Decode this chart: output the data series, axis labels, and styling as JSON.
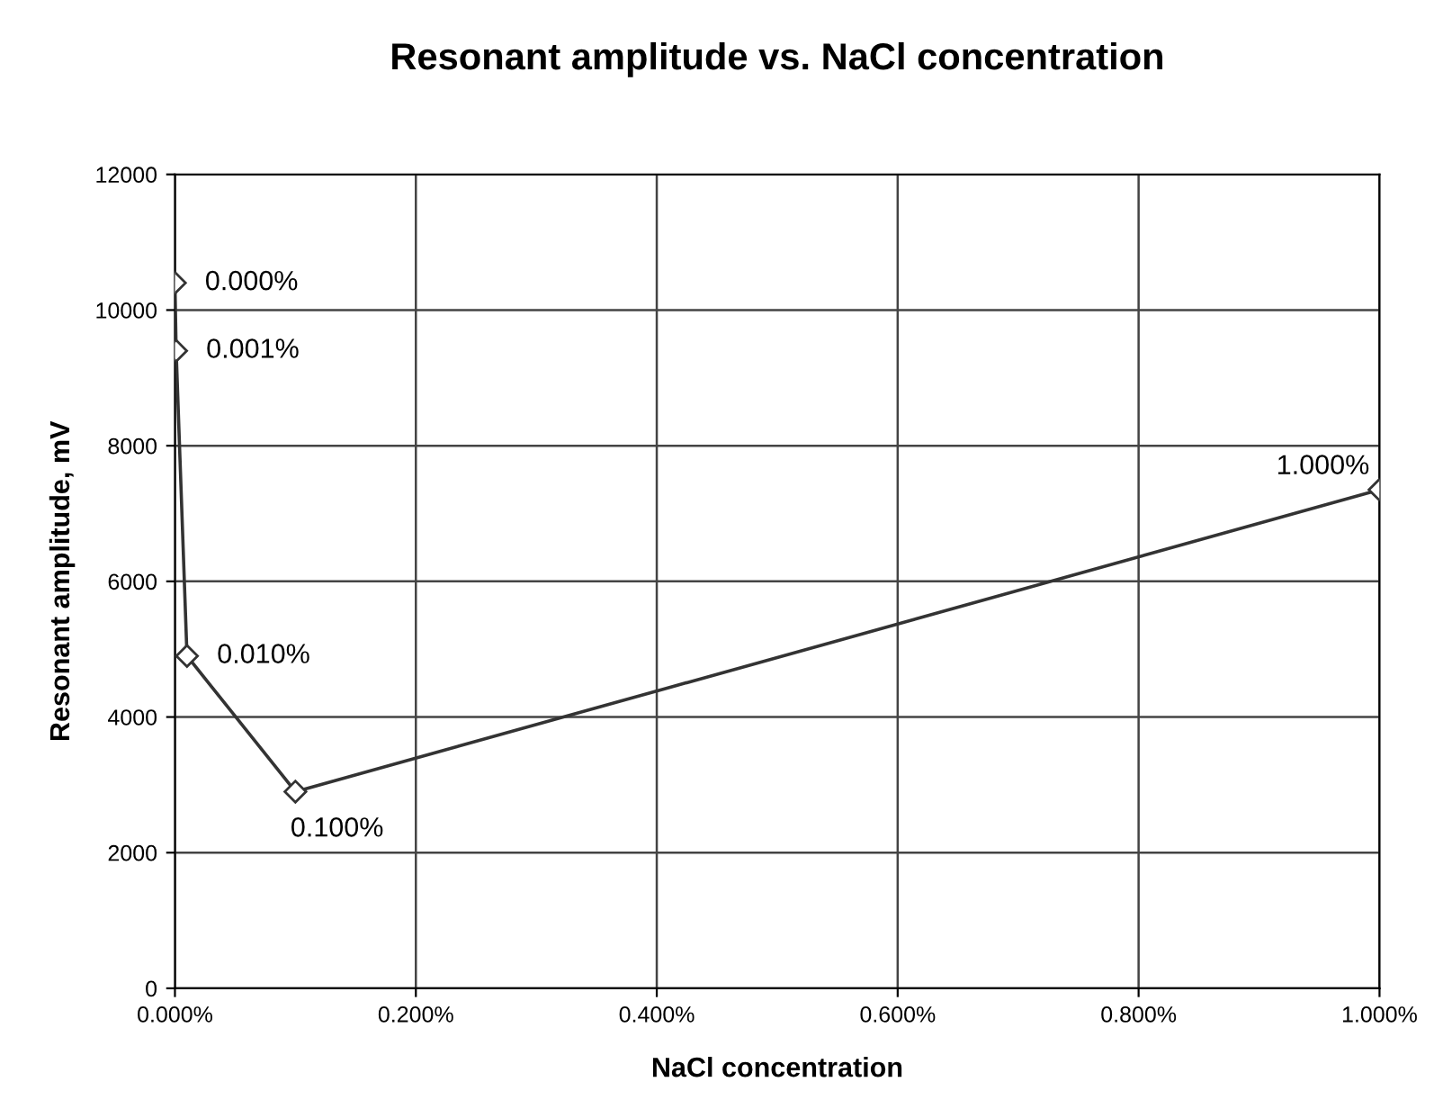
{
  "chart_data": {
    "type": "line",
    "title": "Resonant amplitude vs. NaCl concentration",
    "xlabel": "NaCl concentration",
    "ylabel": "Resonant amplitude, mV",
    "x": [
      0,
      0.001,
      0.01,
      0.1,
      1
    ],
    "series": [
      {
        "color": "#333333",
        "values": [
          10400,
          9400,
          4900,
          2900,
          7350
        ]
      }
    ],
    "annotations": [
      {
        "text": "0.000%",
        "x": 0,
        "y": 10400
      },
      {
        "text": "0.001%",
        "x": 0.001,
        "y": 9400
      },
      {
        "text": "0.010%",
        "x": 0.01,
        "y": 4900
      },
      {
        "text": "0.100%",
        "x": 0.1,
        "y": 2900
      },
      {
        "text": "1.000%",
        "x": 1,
        "y": 7350
      }
    ],
    "xlim": [
      0,
      1
    ],
    "ylim": [
      0,
      12000
    ],
    "xticks": [
      {
        "value": 0,
        "label": "0.000%"
      },
      {
        "value": 0.2,
        "label": "0.200%"
      },
      {
        "value": 0.4,
        "label": "0.400%"
      },
      {
        "value": 0.6,
        "label": "0.600%"
      },
      {
        "value": 0.8,
        "label": "0.800%"
      },
      {
        "value": 1,
        "label": "1.000%"
      }
    ],
    "yticks": [
      0,
      2000,
      4000,
      6000,
      8000,
      10000,
      12000
    ],
    "grid": true,
    "marker": "diamond",
    "line_style": "solid"
  }
}
